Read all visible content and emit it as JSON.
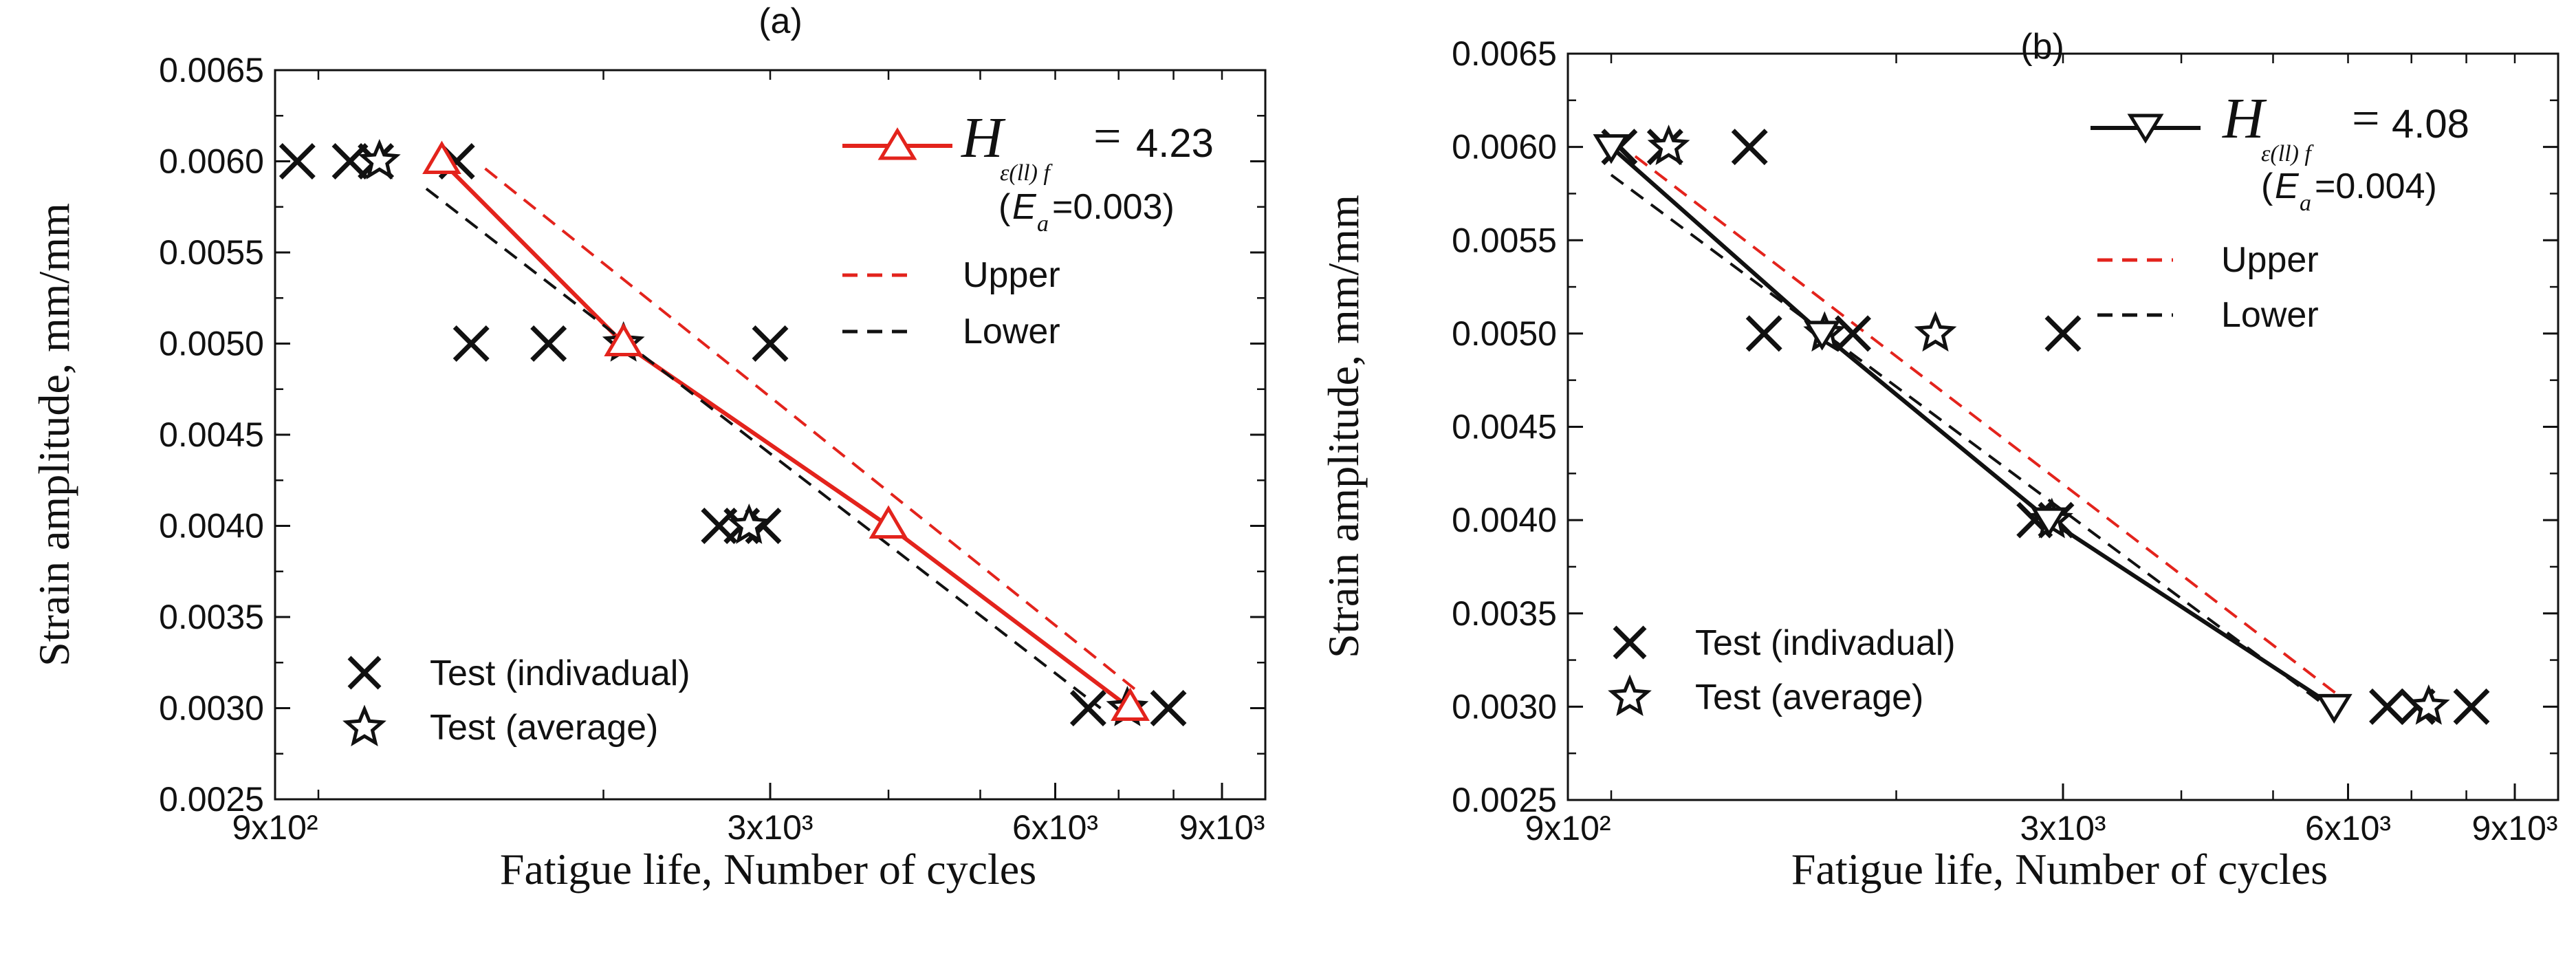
{
  "chart_data": [
    {
      "type": "scatter",
      "panel_label": "(a)",
      "xlabel": "Fatigue life, Number of cycles",
      "ylabel": "Strain amplitude,  mm/mm",
      "xscale": "log",
      "xlim": [
        900,
        10000
      ],
      "ylim": [
        0.0025,
        0.0065
      ],
      "x_tick_labels": [
        {
          "value": 900,
          "label": "9x10²"
        },
        {
          "value": 3000,
          "label": "3x10³"
        },
        {
          "value": 6000,
          "label": "6x10³"
        },
        {
          "value": 9000,
          "label": "9x10³"
        }
      ],
      "y_ticks": [
        "0.0025",
        "0.0030",
        "0.0035",
        "0.0040",
        "0.0045",
        "0.0050",
        "0.0055",
        "0.0060",
        "0.0065"
      ],
      "series": [
        {
          "name": "Test (indivadual)",
          "marker": "x",
          "color": "#111111",
          "points": [
            [
              950,
              0.006
            ],
            [
              1080,
              0.006
            ],
            [
              1150,
              0.006
            ],
            [
              1400,
              0.006
            ],
            [
              1450,
              0.005
            ],
            [
              1750,
              0.005
            ],
            [
              3000,
              0.005
            ],
            [
              2650,
              0.004
            ],
            [
              2800,
              0.004
            ],
            [
              2950,
              0.004
            ],
            [
              6500,
              0.003
            ],
            [
              7900,
              0.003
            ]
          ]
        },
        {
          "name": "Test (average)",
          "marker": "star",
          "color": "#111111",
          "points": [
            [
              1160,
              0.006
            ],
            [
              2100,
              0.005
            ],
            [
              2850,
              0.004
            ],
            [
              7150,
              0.003
            ]
          ]
        },
        {
          "name": "Fit",
          "marker": "triangle-up",
          "color": "#e3231c",
          "line": "solid",
          "points": [
            [
              1350,
              0.006
            ],
            [
              2100,
              0.005
            ],
            [
              4000,
              0.004
            ],
            [
              7200,
              0.003
            ]
          ]
        },
        {
          "name": "Upper",
          "color": "#e3231c",
          "line": "dashed",
          "points": [
            [
              1500,
              0.00596
            ],
            [
              7300,
              0.0031
            ]
          ]
        },
        {
          "name": "Lower",
          "color": "#111111",
          "line": "dashed",
          "points": [
            [
              1300,
              0.00585
            ],
            [
              6700,
              0.003
            ]
          ]
        }
      ],
      "legend_fit": {
        "symbol": "H",
        "subscript": "ε(ll) f",
        "equals": "=",
        "value": "4.23",
        "note_prefix": "(",
        "note_var": "E",
        "note_sub": "a",
        "note_value": "=0.003)"
      },
      "legend_upper": "Upper",
      "legend_lower": "Lower",
      "legend_ind": "Test (indivadual)",
      "legend_avg": "Test (average)"
    },
    {
      "type": "scatter",
      "panel_label": "(b)",
      "xlabel": "Fatigue life, Number of cycles",
      "ylabel": "Strain amplitude,  mm/mm",
      "xscale": "log",
      "xlim": [
        900,
        10000
      ],
      "ylim": [
        0.0025,
        0.0065
      ],
      "x_tick_labels": [
        {
          "value": 900,
          "label": "9x10²"
        },
        {
          "value": 3000,
          "label": "3x10³"
        },
        {
          "value": 6000,
          "label": "6x10³"
        },
        {
          "value": 9000,
          "label": "9x10³"
        }
      ],
      "y_ticks": [
        "0.0025",
        "0.0030",
        "0.0035",
        "0.0040",
        "0.0045",
        "0.0050",
        "0.0055",
        "0.0060",
        "0.0065"
      ],
      "series": [
        {
          "name": "Test (indivadual)",
          "marker": "x",
          "color": "#111111",
          "points": [
            [
              1020,
              0.006
            ],
            [
              1140,
              0.006
            ],
            [
              1400,
              0.006
            ],
            [
              1450,
              0.005
            ],
            [
              1800,
              0.005
            ],
            [
              3000,
              0.005
            ],
            [
              2800,
              0.004
            ],
            [
              2950,
              0.004
            ],
            [
              6600,
              0.003
            ],
            [
              7100,
              0.003
            ],
            [
              8100,
              0.003
            ]
          ]
        },
        {
          "name": "Test (average)",
          "marker": "star",
          "color": "#111111",
          "points": [
            [
              1150,
              0.006
            ],
            [
              1680,
              0.005
            ],
            [
              2200,
              0.005
            ],
            [
              2920,
              0.004
            ],
            [
              7300,
              0.003
            ]
          ]
        },
        {
          "name": "Fit",
          "marker": "triangle-down",
          "color": "#111111",
          "line": "solid",
          "points": [
            [
              1000,
              0.006
            ],
            [
              1670,
              0.005
            ],
            [
              2900,
              0.004
            ],
            [
              5800,
              0.003
            ]
          ]
        },
        {
          "name": "Upper",
          "color": "#e3231c",
          "line": "dashed",
          "points": [
            [
              1060,
              0.00595
            ],
            [
              5900,
              0.00305
            ]
          ]
        },
        {
          "name": "Lower",
          "color": "#111111",
          "line": "dashed",
          "points": [
            [
              1000,
              0.00585
            ],
            [
              5700,
              0.003
            ]
          ]
        }
      ],
      "legend_fit": {
        "symbol": "H",
        "subscript": "ε(ll) f",
        "equals": "=",
        "value": "4.08",
        "note_prefix": "(",
        "note_var": "E",
        "note_sub": "a",
        "note_value": "=0.004)"
      },
      "legend_upper": "Upper",
      "legend_lower": "Lower",
      "legend_ind": "Test (indivadual)",
      "legend_avg": "Test (average)"
    }
  ]
}
